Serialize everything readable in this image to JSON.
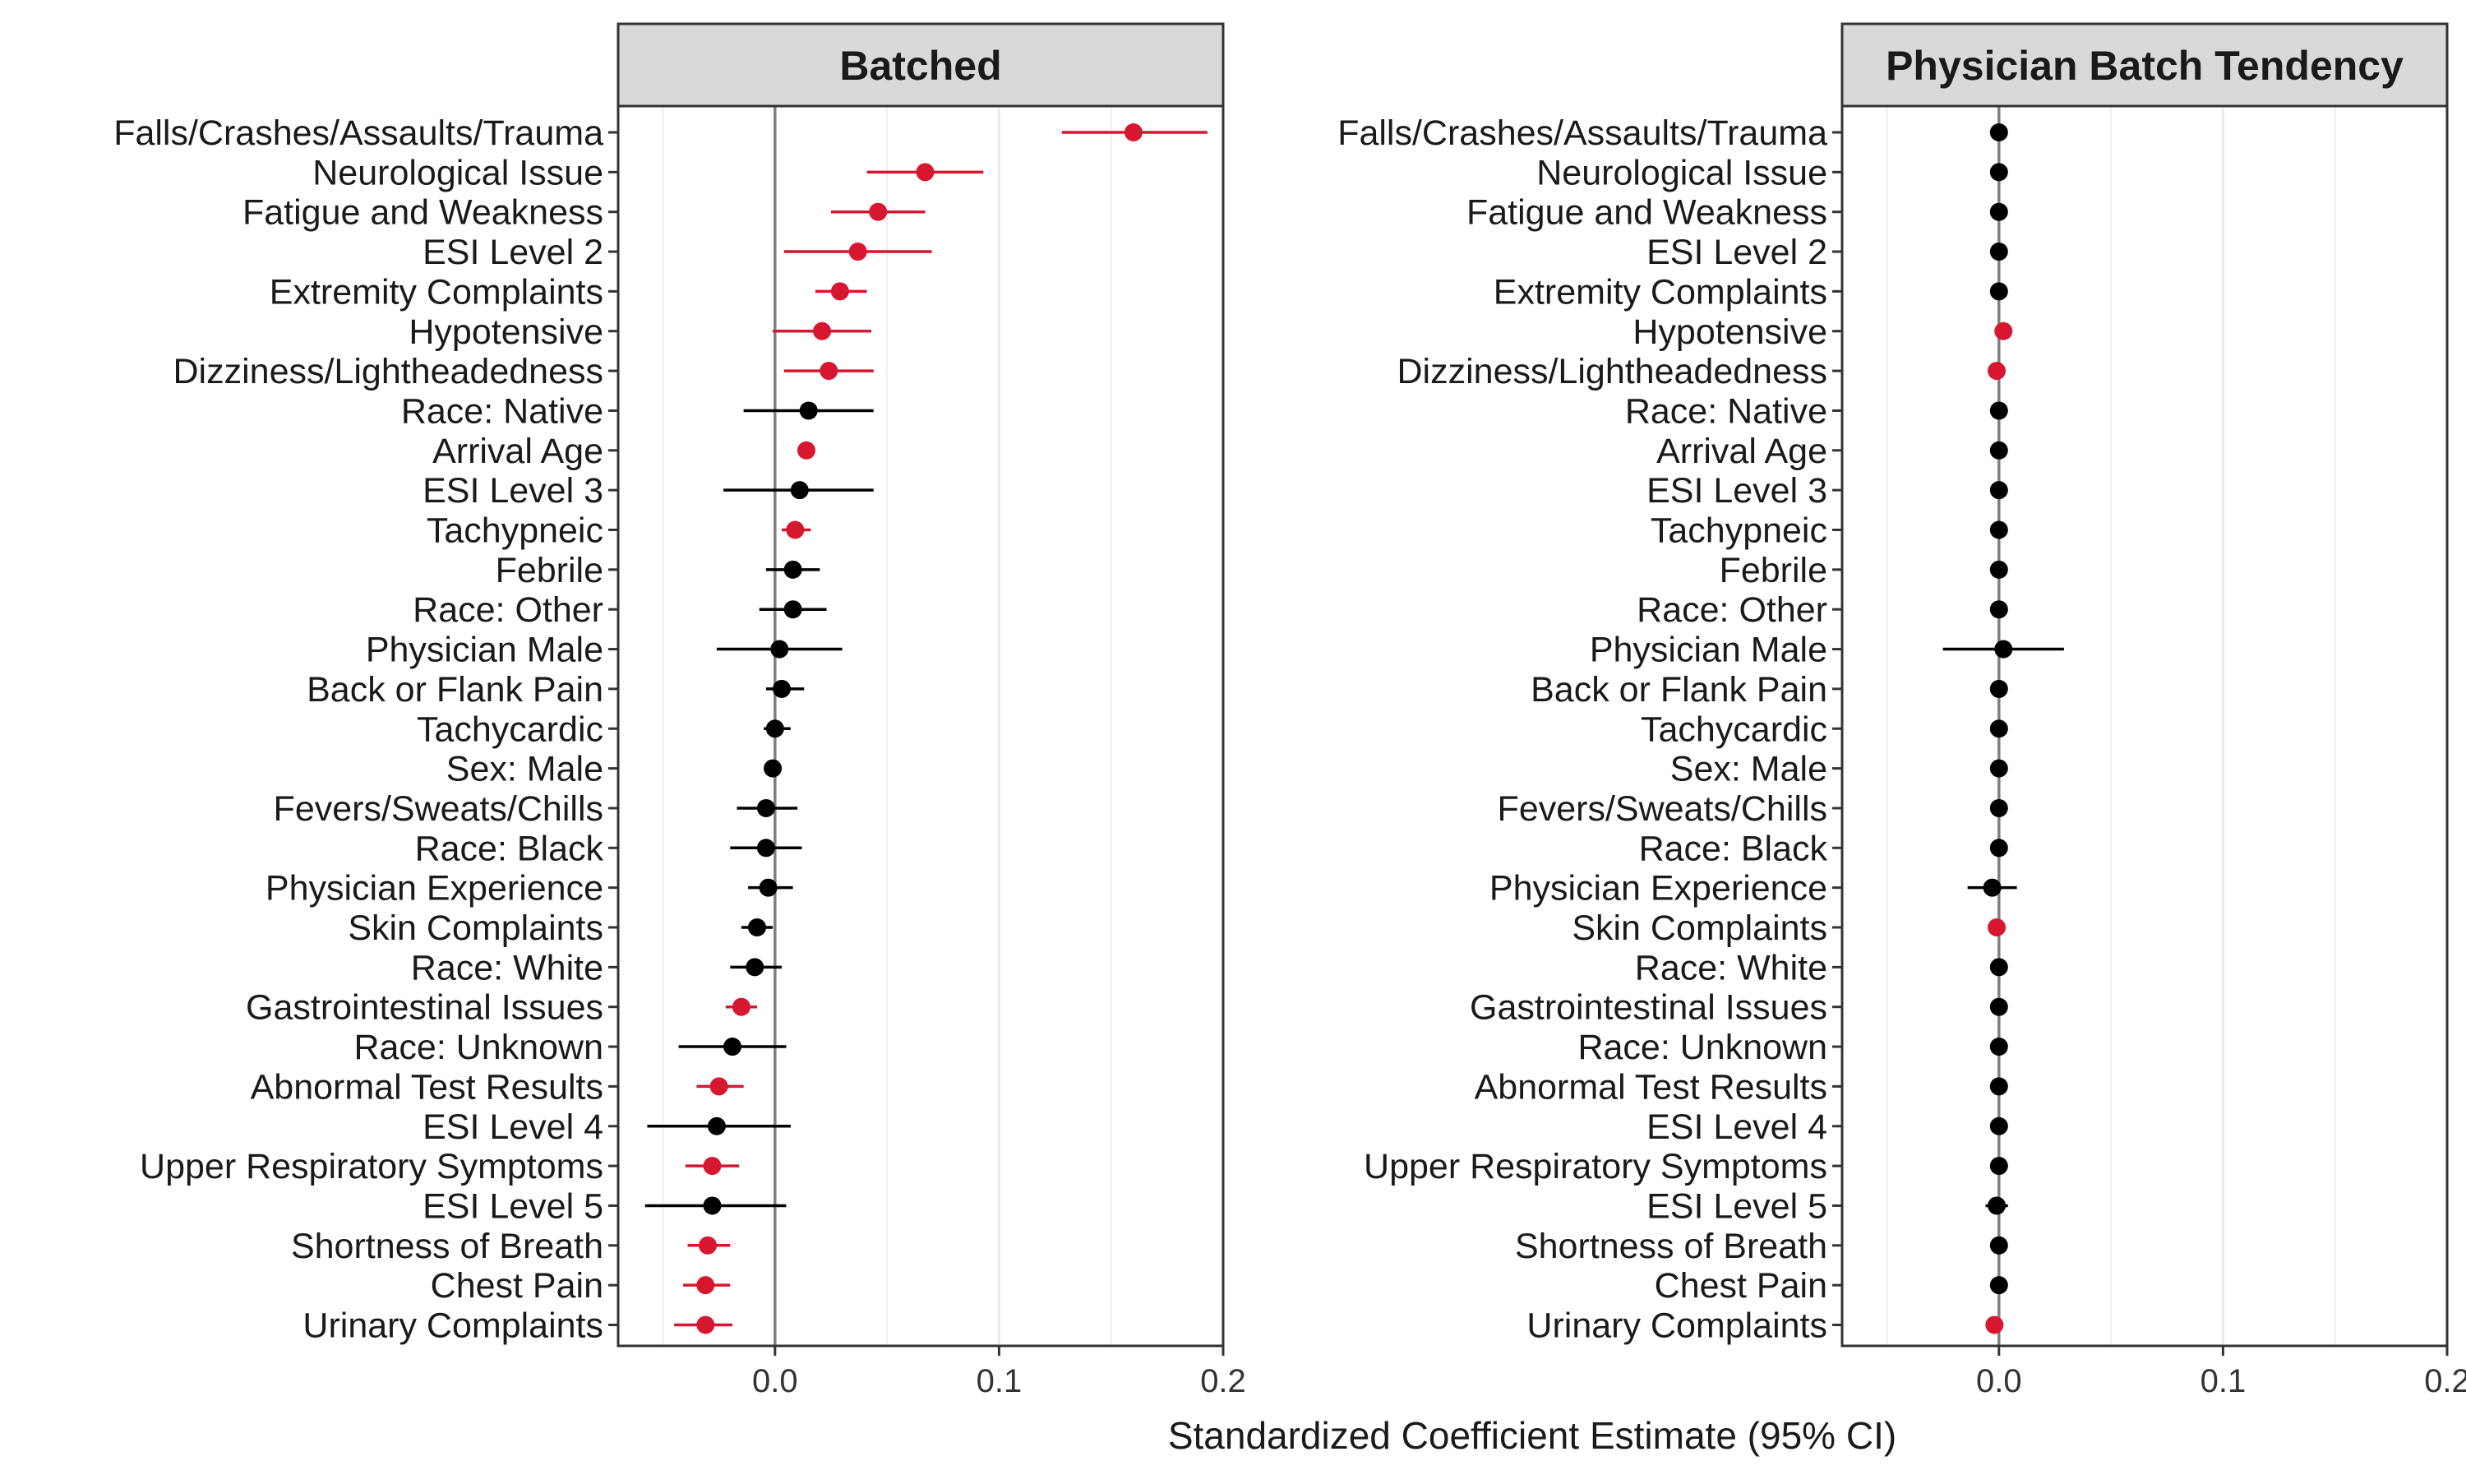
{
  "chart_data": {
    "type": "scatter",
    "subtype": "coefficient-forest-plot",
    "xlabel": "Standardized Coefficient Estimate (95% CI)",
    "xlim": [
      -0.07,
      0.2
    ],
    "xticks": [
      0.0,
      0.1,
      0.2
    ],
    "xtick_labels": [
      "0.0",
      "0.1",
      "0.2"
    ],
    "grid": true,
    "zero_reference_line": 0.0,
    "colors": {
      "significant": "#d7172f",
      "not_significant": "#000000",
      "strip_background": "#d9d9d9",
      "grid": "#ebebeb",
      "zero_line": "#7f7f7f"
    },
    "categories": [
      "Falls/Crashes/Assaults/Trauma",
      "Neurological Issue",
      "Fatigue and Weakness",
      "ESI Level 2",
      "Extremity Complaints",
      "Hypotensive",
      "Dizziness/Lightheadedness",
      "Race: Native",
      "Arrival Age",
      "ESI Level 3",
      "Tachypneic",
      "Febrile",
      "Race: Other",
      "Physician Male",
      "Back or Flank Pain",
      "Tachycardic",
      "Sex: Male",
      "Fevers/Sweats/Chills",
      "Race: Black",
      "Physician Experience",
      "Skin Complaints",
      "Race: White",
      "Gastrointestinal Issues",
      "Race: Unknown",
      "Abnormal Test Results",
      "ESI Level 4",
      "Upper Respiratory Symptoms",
      "ESI Level 5",
      "Shortness of Breath",
      "Chest Pain",
      "Urinary Complaints"
    ],
    "panels": [
      {
        "title": "Batched",
        "estimate": [
          0.16,
          0.067,
          0.046,
          0.037,
          0.029,
          0.021,
          0.024,
          0.015,
          0.014,
          0.011,
          0.009,
          0.008,
          0.008,
          0.002,
          0.003,
          0.0,
          -0.001,
          -0.004,
          -0.004,
          -0.003,
          -0.008,
          -0.009,
          -0.015,
          -0.019,
          -0.025,
          -0.026,
          -0.028,
          -0.028,
          -0.03,
          -0.031,
          -0.031
        ],
        "ci_low": [
          0.128,
          0.041,
          0.025,
          0.004,
          0.018,
          -0.001,
          0.004,
          -0.014,
          0.011,
          -0.023,
          0.003,
          -0.004,
          -0.007,
          -0.026,
          -0.004,
          -0.005,
          -0.004,
          -0.017,
          -0.02,
          -0.012,
          -0.015,
          -0.02,
          -0.022,
          -0.043,
          -0.035,
          -0.057,
          -0.04,
          -0.058,
          -0.039,
          -0.041,
          -0.045
        ],
        "ci_high": [
          0.193,
          0.093,
          0.067,
          0.07,
          0.041,
          0.043,
          0.044,
          0.044,
          0.017,
          0.044,
          0.016,
          0.02,
          0.023,
          0.03,
          0.013,
          0.007,
          0.003,
          0.01,
          0.012,
          0.008,
          -0.001,
          0.003,
          -0.008,
          0.005,
          -0.014,
          0.007,
          -0.016,
          0.005,
          -0.02,
          -0.02,
          -0.019
        ],
        "significant": [
          true,
          true,
          true,
          true,
          true,
          true,
          true,
          false,
          true,
          false,
          true,
          false,
          false,
          false,
          false,
          false,
          false,
          false,
          false,
          false,
          false,
          false,
          true,
          false,
          true,
          false,
          true,
          false,
          true,
          true,
          true
        ]
      },
      {
        "title": "Physician Batch Tendency",
        "estimate": [
          0.0,
          0.0,
          0.0,
          0.0,
          0.0,
          0.002,
          -0.001,
          0.0,
          0.0,
          0.0,
          0.0,
          0.0,
          0.0,
          0.002,
          0.0,
          0.0,
          0.0,
          0.0,
          0.0,
          -0.003,
          -0.001,
          0.0,
          0.0,
          0.0,
          0.0,
          0.0,
          0.0,
          -0.001,
          0.0,
          0.0,
          -0.002
        ],
        "ci_low": [
          -0.001,
          -0.001,
          -0.001,
          -0.001,
          -0.001,
          0.001,
          -0.002,
          -0.001,
          -0.001,
          -0.001,
          -0.001,
          -0.001,
          -0.001,
          -0.025,
          -0.001,
          -0.001,
          -0.001,
          -0.001,
          -0.001,
          -0.014,
          -0.002,
          -0.001,
          -0.001,
          -0.001,
          -0.001,
          -0.001,
          -0.001,
          -0.006,
          -0.001,
          -0.001,
          -0.003
        ],
        "ci_high": [
          0.001,
          0.001,
          0.001,
          0.001,
          0.001,
          0.003,
          -0.0002,
          0.001,
          0.001,
          0.001,
          0.001,
          0.001,
          0.001,
          0.029,
          0.001,
          0.001,
          0.001,
          0.001,
          0.001,
          0.008,
          -0.0002,
          0.001,
          0.001,
          0.001,
          0.001,
          0.001,
          0.001,
          0.004,
          0.001,
          0.001,
          -0.001
        ],
        "significant": [
          false,
          false,
          false,
          false,
          false,
          true,
          true,
          false,
          false,
          false,
          false,
          false,
          false,
          false,
          false,
          false,
          false,
          false,
          false,
          false,
          true,
          false,
          false,
          false,
          false,
          false,
          false,
          false,
          false,
          false,
          true
        ]
      }
    ]
  }
}
